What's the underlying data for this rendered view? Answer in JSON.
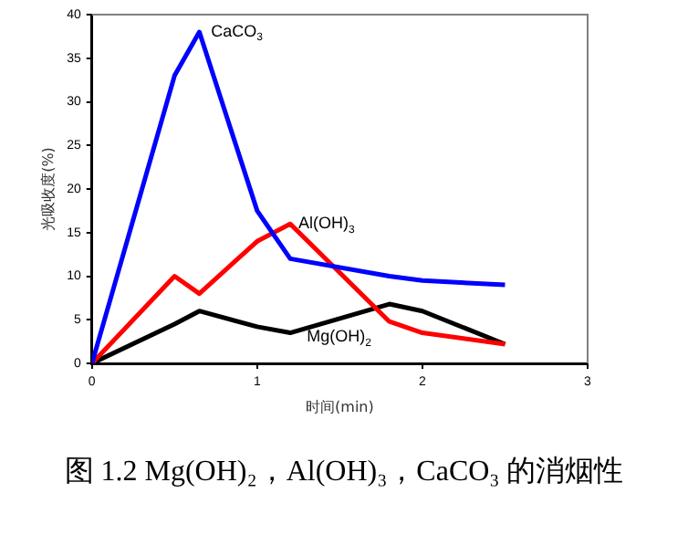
{
  "chart_data": {
    "type": "line",
    "title": "图 1.2 Mg(OH)₂，Al(OH)₃，CaCO₃ 的消烟性",
    "xlabel": "时间(min)",
    "ylabel": "光吸收度(%)",
    "x": [
      0,
      0.5,
      0.65,
      1,
      1.2,
      1.8,
      2,
      2.5
    ],
    "series": [
      {
        "color": "#0000ff",
        "values": [
          0,
          33,
          38,
          17.5,
          12,
          10,
          9.5,
          9
        ]
      },
      {
        "color": "#ff0000",
        "values": [
          0,
          10,
          8,
          14,
          16,
          4.8,
          3.5,
          2.2
        ]
      },
      {
        "color": "#000000",
        "values": [
          0,
          4.5,
          6,
          4.2,
          3.5,
          6.8,
          6,
          2.2
        ]
      }
    ],
    "xlim": [
      0,
      3
    ],
    "xticks": [
      0,
      1,
      2,
      3
    ],
    "ylim": [
      0,
      40
    ],
    "yticks": [
      0,
      5,
      10,
      15,
      20,
      25,
      30,
      35,
      40
    ],
    "grid": false,
    "legend": false,
    "marker": "none",
    "line_style": "solid",
    "annotations": [
      {
        "text": "CaCO$_{3}$",
        "x": 0.72,
        "y": 38
      },
      {
        "text": "Al(OH)$_{3}$",
        "x": 1.25,
        "y": 16
      },
      {
        "text": "Mg(OH)$_{2}$",
        "x": 1.3,
        "y": 3
      }
    ]
  }
}
